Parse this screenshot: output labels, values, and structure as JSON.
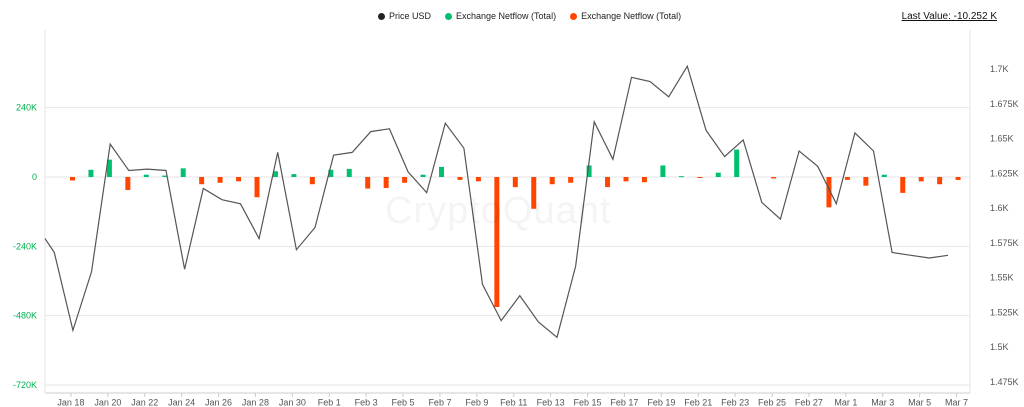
{
  "legend": [
    {
      "label": "Price USD",
      "color": "#222222"
    },
    {
      "label": "Exchange Netflow (Total)",
      "color": "#00c070"
    },
    {
      "label": "Exchange Netflow (Total)",
      "color": "#ff4500"
    }
  ],
  "last_value": "Last Value: -10.252 K",
  "watermark": "CryptoQuant",
  "chart_data": {
    "type": "bar+line",
    "title": "",
    "x_tick_labels": [
      "Jan 18",
      "Jan 20",
      "Jan 22",
      "Jan 24",
      "Jan 26",
      "Jan 28",
      "Jan 30",
      "Feb 1",
      "Feb 3",
      "Feb 5",
      "Feb 7",
      "Feb 9",
      "Feb 11",
      "Feb 13",
      "Feb 15",
      "Feb 17",
      "Feb 19",
      "Feb 21",
      "Feb 23",
      "Feb 25",
      "Feb 27",
      "Mar 1",
      "Mar 3",
      "Mar 5",
      "Mar 7"
    ],
    "left_axis": {
      "ticks": [
        "240K",
        "0",
        "-240K",
        "-480K",
        "-720K"
      ],
      "tick_values": [
        240000,
        0,
        -240000,
        -480000,
        -720000
      ],
      "range": [
        -720000,
        240000
      ]
    },
    "right_axis": {
      "ticks": [
        "1.7K",
        "1.675K",
        "1.65K",
        "1.625K",
        "1.6K",
        "1.575K",
        "1.55K",
        "1.525K",
        "1.5K",
        "1.475K"
      ],
      "tick_values": [
        1700,
        1675,
        1650,
        1625,
        1600,
        1575,
        1550,
        1525,
        1500,
        1475
      ],
      "range": [
        1475,
        1700
      ]
    },
    "grid": true,
    "legend_position": "top-center",
    "x_day_index_labels": "day index 0 = Jan 17",
    "netflow": {
      "name": "Exchange Netflow (Total)",
      "positive_color": "#00c070",
      "negative_color": "#ff4500",
      "days": [
        0,
        1,
        2,
        3,
        4,
        5,
        6,
        7,
        8,
        9,
        10,
        11,
        12,
        13,
        14,
        15,
        16,
        17,
        18,
        19,
        20,
        21,
        22,
        23,
        24,
        25,
        26,
        27,
        28,
        29,
        30,
        31,
        32,
        33,
        34,
        35,
        36,
        37,
        38,
        39,
        40,
        41,
        42,
        43,
        44,
        45,
        46,
        47,
        48,
        49
      ],
      "values": [
        -12000,
        25000,
        60000,
        -45000,
        8000,
        5000,
        30000,
        -25000,
        -20000,
        -15000,
        -70000,
        20000,
        10000,
        -25000,
        25000,
        28000,
        -40000,
        -38000,
        -20000,
        8000,
        35000,
        -10000,
        -15000,
        -450000,
        -35000,
        -110000,
        -25000,
        -20000,
        40000,
        -35000,
        -15000,
        -18000,
        40000,
        3000,
        -3000,
        15000,
        95000,
        0,
        -5000,
        0,
        0,
        -105000,
        -10000,
        -30000,
        8000,
        -55000,
        -15000,
        -25000,
        -10252,
        0
      ]
    },
    "price": {
      "name": "Price USD",
      "color": "#555555",
      "days": [
        0,
        0.5,
        1.5,
        2.5,
        3.5,
        4.5,
        5.5,
        6.5,
        7.5,
        8.5,
        9.5,
        10.5,
        11.5,
        12.5,
        13.5,
        14.5,
        15.5,
        16.5,
        17.5,
        18.5,
        19.5,
        20.5,
        21.5,
        22.5,
        23.5,
        24.5,
        25.5,
        26.5,
        27.5,
        28.5,
        29.5,
        30.5,
        31.5,
        32.5,
        33.5,
        34.5,
        35.5,
        36.5,
        37.5,
        38.5,
        39.5,
        40.5,
        41.5,
        42.5,
        43.5,
        44.5,
        45.5,
        46.5,
        47.5,
        48.5
      ],
      "values": [
        1578,
        1568,
        1512,
        1554,
        1646,
        1627,
        1628,
        1627,
        1556,
        1614,
        1606,
        1603,
        1578,
        1640,
        1570,
        1586,
        1638,
        1640,
        1655,
        1657,
        1626,
        1611,
        1661,
        1643,
        1545,
        1519,
        1537,
        1518,
        1507,
        1558,
        1662,
        1635,
        1694,
        1691,
        1680,
        1702,
        1656,
        1637,
        1649,
        1604,
        1592,
        1641,
        1630,
        1603,
        1654,
        1641,
        1568,
        1566,
        1564,
        1566
      ]
    }
  }
}
